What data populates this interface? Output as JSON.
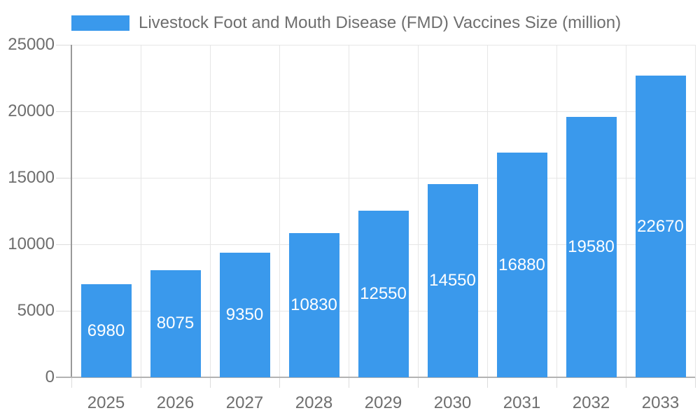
{
  "chart_data": {
    "type": "bar",
    "title": "",
    "legend": "Livestock Foot and Mouth Disease (FMD) Vaccines Size (million)",
    "legend_position": "top-left",
    "categories": [
      "2025",
      "2026",
      "2027",
      "2028",
      "2029",
      "2030",
      "2031",
      "2032",
      "2033"
    ],
    "values": [
      6980,
      8075,
      9350,
      10830,
      12550,
      14550,
      16880,
      19580,
      22670
    ],
    "xlabel": "",
    "ylabel": "",
    "ylim": [
      0,
      25000
    ],
    "yticks": [
      0,
      5000,
      10000,
      15000,
      20000,
      25000
    ],
    "grid": true,
    "bar_label_placement": "inside-center"
  },
  "colors": {
    "bar": "#3A99EC",
    "grid": "#E6E6E6",
    "tick": "#DCDCDC",
    "axis_y": "#999999",
    "axis_x": "#B3B3B3",
    "text": "#6E6E6E",
    "bar_label_text": "#FFFFFF",
    "background": "#FFFFFF"
  }
}
